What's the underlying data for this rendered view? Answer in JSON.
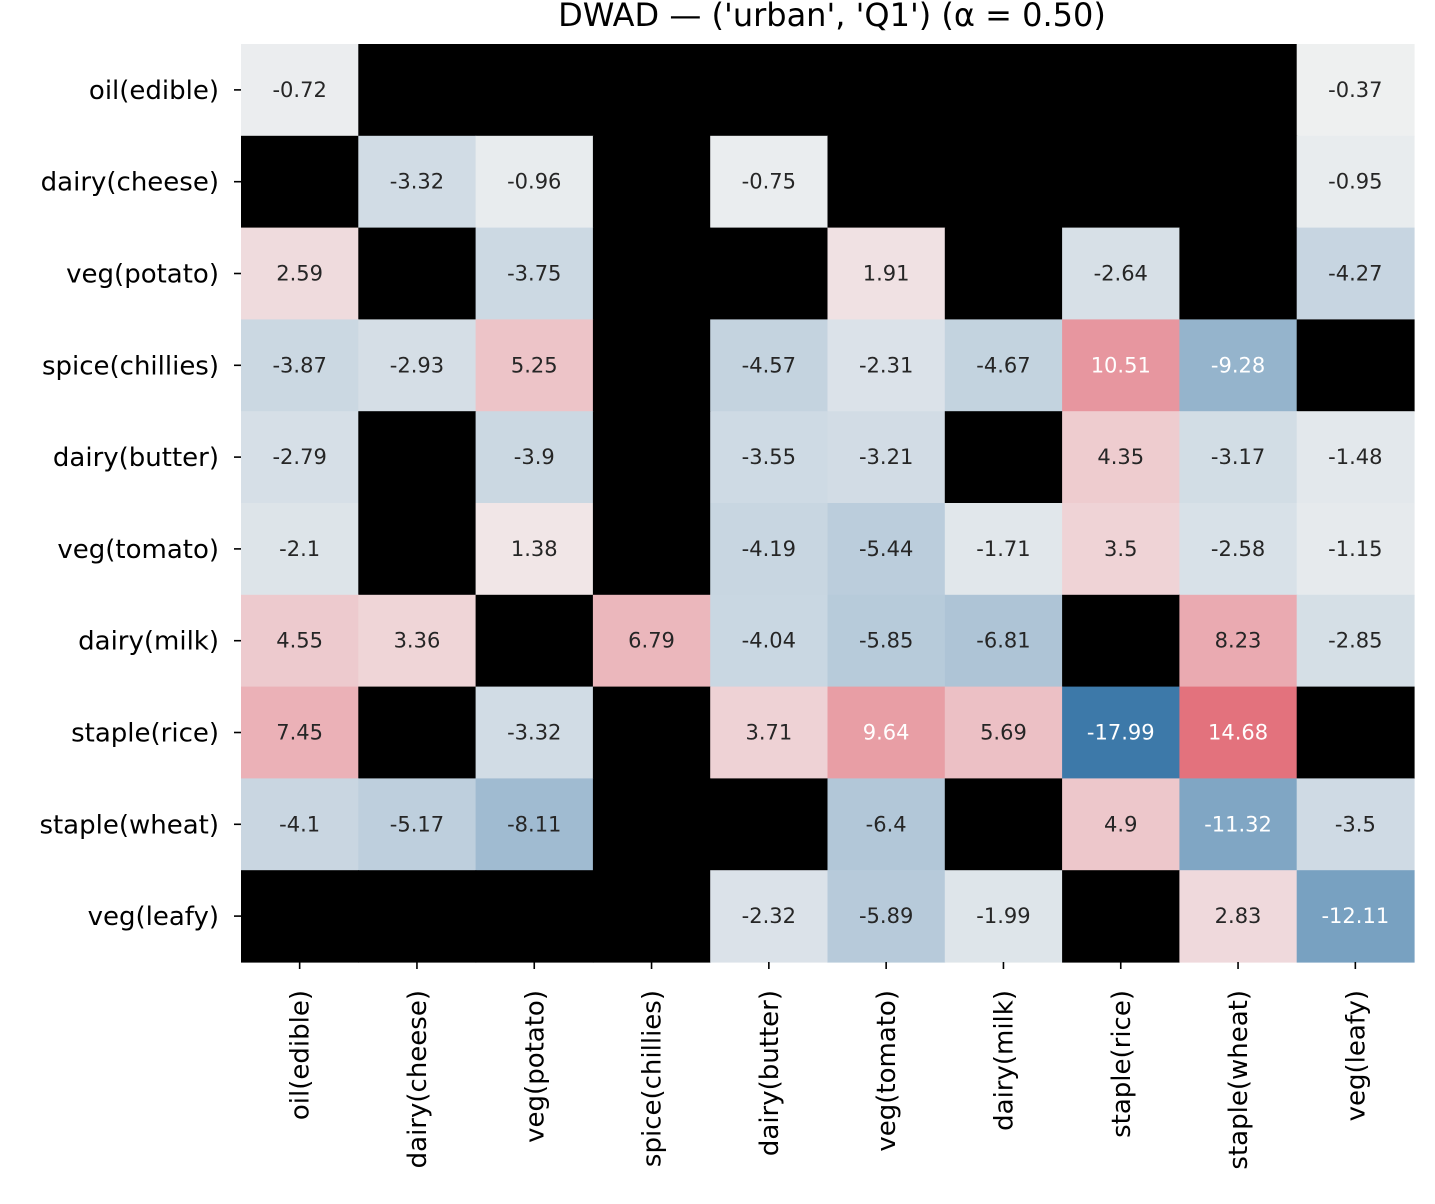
{
  "chart_data": {
    "type": "heatmap",
    "title": "DWAD — ('urban', 'Q1')   (α = 0.50)",
    "rows": [
      "oil(edible)",
      "dairy(cheese)",
      "veg(potato)",
      "spice(chillies)",
      "dairy(butter)",
      "veg(tomato)",
      "dairy(milk)",
      "staple(rice)",
      "staple(wheat)",
      "veg(leafy)"
    ],
    "columns": [
      "oil(edible)",
      "dairy(cheese)",
      "veg(potato)",
      "spice(chillies)",
      "dairy(butter)",
      "veg(tomato)",
      "dairy(milk)",
      "staple(rice)",
      "staple(wheat)",
      "veg(leafy)"
    ],
    "values": [
      [
        -0.72,
        null,
        null,
        null,
        null,
        null,
        null,
        null,
        null,
        -0.37
      ],
      [
        null,
        -3.32,
        -0.96,
        null,
        -0.75,
        null,
        null,
        null,
        null,
        -0.95
      ],
      [
        2.59,
        null,
        -3.75,
        null,
        null,
        1.91,
        null,
        -2.64,
        null,
        -4.27
      ],
      [
        -3.87,
        -2.93,
        5.25,
        null,
        -4.57,
        -2.31,
        -4.67,
        10.51,
        -9.28,
        null
      ],
      [
        -2.79,
        null,
        -3.9,
        null,
        -3.55,
        -3.21,
        null,
        4.35,
        -3.17,
        -1.48
      ],
      [
        -2.1,
        null,
        1.38,
        null,
        -4.19,
        -5.44,
        -1.71,
        3.5,
        -2.58,
        -1.15
      ],
      [
        4.55,
        3.36,
        null,
        6.79,
        -4.04,
        -5.85,
        -6.81,
        null,
        8.23,
        -2.85
      ],
      [
        7.45,
        null,
        -3.32,
        null,
        3.71,
        9.64,
        5.69,
        -17.99,
        14.68,
        null
      ],
      [
        -4.1,
        -5.17,
        -8.11,
        null,
        null,
        -6.4,
        null,
        4.9,
        -11.32,
        -3.5
      ],
      [
        null,
        null,
        null,
        null,
        -2.32,
        -5.89,
        -1.99,
        null,
        2.83,
        -12.11
      ]
    ],
    "value_labels": [
      [
        "-0.72",
        null,
        null,
        null,
        null,
        null,
        null,
        null,
        null,
        "-0.37"
      ],
      [
        null,
        "-3.32",
        "-0.96",
        null,
        "-0.75",
        null,
        null,
        null,
        null,
        "-0.95"
      ],
      [
        "2.59",
        null,
        "-3.75",
        null,
        null,
        "1.91",
        null,
        "-2.64",
        null,
        "-4.27"
      ],
      [
        "-3.87",
        "-2.93",
        "5.25",
        null,
        "-4.57",
        "-2.31",
        "-4.67",
        "10.51",
        "-9.28",
        null
      ],
      [
        "-2.79",
        null,
        "-3.9",
        null,
        "-3.55",
        "-3.21",
        null,
        "4.35",
        "-3.17",
        "-1.48"
      ],
      [
        "-2.1",
        null,
        "1.38",
        null,
        "-4.19",
        "-5.44",
        "-1.71",
        "3.5",
        "-2.58",
        "-1.15"
      ],
      [
        "4.55",
        "3.36",
        null,
        "6.79",
        "-4.04",
        "-5.85",
        "-6.81",
        null,
        "8.23",
        "-2.85"
      ],
      [
        "7.45",
        null,
        "-3.32",
        null,
        "3.71",
        "9.64",
        "5.69",
        "-17.99",
        "14.68",
        null
      ],
      [
        "-4.1",
        "-5.17",
        "-8.11",
        null,
        null,
        "-6.4",
        null,
        "4.9",
        "-11.32",
        "-3.5"
      ],
      [
        null,
        null,
        null,
        null,
        "-2.32",
        "-5.89",
        "-1.99",
        null,
        "2.83",
        "-12.11"
      ]
    ],
    "colormap": "diverging blue-white-red, centered at 0",
    "value_range": [
      -18,
      18
    ],
    "missing_color": "#000000",
    "negative_color": "#3d79a9",
    "positive_color": "#e05563",
    "neutral_color": "#f2f2f2",
    "light_text_color": "#ffffff",
    "dark_text_color": "#262626",
    "colorbar": false,
    "grid": false
  }
}
